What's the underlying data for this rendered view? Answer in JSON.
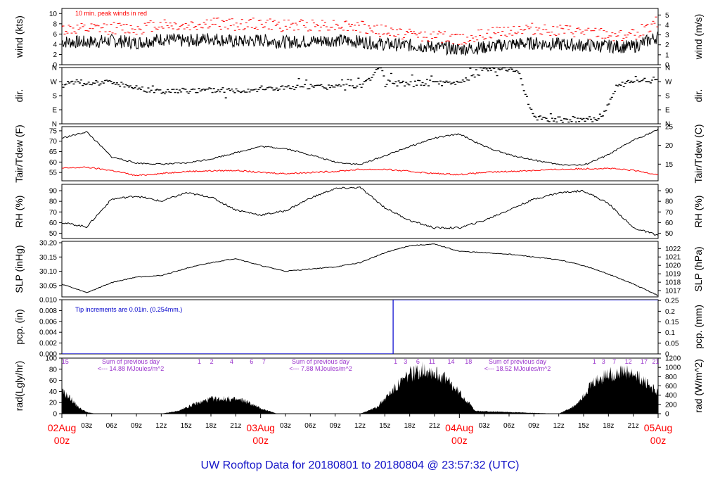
{
  "title": "UW Rooftop Data for 20180801  to  20180804 @ 23:57:32  (UTC)",
  "colors": {
    "black": "#000000",
    "red": "#ff0000",
    "blue": "#0000cc",
    "purple": "#9a33cc",
    "title_blue": "#1414c8"
  },
  "chart_data": [
    {
      "type": "line",
      "panel": "wind",
      "ylabel": "wind (kts)",
      "ylabel_right": "wind (m/s)",
      "ylim": [
        0,
        11
      ],
      "yticks": [
        0,
        2,
        4,
        6,
        8,
        10
      ],
      "right_ticks": [
        0,
        1,
        2,
        3,
        4,
        5
      ],
      "annotation": "10 min. peak winds in red",
      "series": [
        {
          "name": "wind speed",
          "color": "#000000",
          "x": [
            0,
            3,
            6,
            9,
            12,
            15,
            18,
            21,
            24,
            27,
            30,
            33,
            36,
            39,
            42,
            45,
            48,
            51,
            54,
            57,
            60,
            63,
            66,
            69,
            72
          ],
          "y": [
            4.5,
            4.4,
            4.7,
            4.3,
            5.0,
            4.6,
            5.2,
            4.5,
            4.8,
            4.4,
            4.6,
            4.8,
            4.5,
            4.0,
            3.8,
            3.5,
            3.0,
            3.4,
            4.0,
            4.2,
            4.0,
            3.8,
            3.6,
            3.5,
            5.5
          ]
        },
        {
          "name": "10 min. peak winds",
          "color": "#ff0000",
          "x": [
            0,
            3,
            6,
            9,
            12,
            15,
            18,
            21,
            24,
            27,
            30,
            33,
            36,
            39,
            42,
            45,
            48,
            51,
            54,
            57,
            60,
            63,
            66,
            69,
            72
          ],
          "y": [
            7.0,
            6.8,
            7.2,
            7.0,
            8.0,
            7.5,
            8.2,
            7.8,
            8.0,
            7.6,
            7.8,
            7.8,
            7.4,
            6.5,
            6.0,
            5.5,
            5.0,
            5.8,
            6.8,
            7.0,
            6.6,
            6.2,
            5.8,
            5.8,
            8.5
          ]
        }
      ]
    },
    {
      "type": "scatter",
      "panel": "dir",
      "ylabel": "dir.",
      "ylabel_right": "dir.",
      "ylim": [
        0,
        360
      ],
      "ytick_labels": [
        "N",
        "E",
        "S",
        "W",
        "N"
      ],
      "series": [
        {
          "name": "wind direction",
          "color": "#000000",
          "x": [
            0,
            3,
            6,
            9,
            12,
            15,
            18,
            21,
            24,
            27,
            30,
            33,
            36,
            38.5,
            39,
            41,
            43,
            45,
            47,
            49,
            51,
            53,
            55,
            57,
            59,
            61,
            63,
            65,
            67,
            69,
            72
          ],
          "y": [
            265,
            262,
            268,
            230,
            205,
            210,
            215,
            215,
            225,
            230,
            235,
            238,
            240,
            355,
            270,
            255,
            260,
            262,
            255,
            290,
            345,
            350,
            350,
            30,
            30,
            25,
            35,
            25,
            235,
            270,
            285
          ]
        }
      ]
    },
    {
      "type": "line",
      "panel": "temp",
      "ylabel": "Tair/Tdew (F)",
      "ylabel_right": "Tair/Tdew (C)",
      "ylim": [
        51,
        77
      ],
      "yticks": [
        55,
        60,
        65,
        70,
        75
      ],
      "right_ticks": [
        15,
        20,
        25
      ],
      "series": [
        {
          "name": "Tair",
          "color": "#000000",
          "x": [
            0,
            3,
            6,
            9,
            12,
            15,
            18,
            21,
            24,
            27,
            30,
            33,
            36,
            39,
            42,
            45,
            48,
            51,
            54,
            57,
            60,
            63,
            66,
            69,
            72
          ],
          "y": [
            71.5,
            74.5,
            62.5,
            59.5,
            59.0,
            59.5,
            61.5,
            64.5,
            67.5,
            66.5,
            63.5,
            60.0,
            58.8,
            63.0,
            67.5,
            71.5,
            73.5,
            67.5,
            63.5,
            61.0,
            58.8,
            58.5,
            63.5,
            70.5,
            75.5
          ]
        },
        {
          "name": "Tdew",
          "color": "#ff0000",
          "x": [
            0,
            3,
            6,
            9,
            12,
            15,
            18,
            21,
            24,
            27,
            30,
            33,
            36,
            39,
            42,
            45,
            48,
            51,
            54,
            57,
            60,
            63,
            66,
            69,
            72
          ],
          "y": [
            57.0,
            57.5,
            56.0,
            53.5,
            54.5,
            55.5,
            55.8,
            56.0,
            55.0,
            54.5,
            55.0,
            55.5,
            56.5,
            56.5,
            55.5,
            54.5,
            54.0,
            55.0,
            55.5,
            56.0,
            56.5,
            56.8,
            57.0,
            56.0,
            54.0
          ]
        }
      ]
    },
    {
      "type": "line",
      "panel": "rh",
      "ylabel": "RH (%)",
      "ylabel_right": "RH (%)",
      "ylim": [
        45,
        96
      ],
      "yticks": [
        50,
        60,
        70,
        80,
        90
      ],
      "series": [
        {
          "name": "RH",
          "color": "#000000",
          "x": [
            0,
            3,
            6,
            9,
            12,
            15,
            18,
            21,
            24,
            27,
            30,
            33,
            36,
            39,
            42,
            45,
            48,
            51,
            54,
            57,
            60,
            63,
            66,
            69,
            72
          ],
          "y": [
            60,
            56,
            82,
            85,
            80,
            88,
            84,
            72,
            67,
            71,
            83,
            92,
            93,
            74,
            62,
            55,
            55,
            62,
            72,
            82,
            88,
            90,
            78,
            55,
            48
          ]
        }
      ]
    },
    {
      "type": "line",
      "panel": "slp",
      "ylabel": "SLP (inHg)",
      "ylabel_right": "SLP (hPa)",
      "ylim": [
        30.01,
        30.205
      ],
      "yticks": [
        30.05,
        30.1,
        30.15,
        30.2
      ],
      "ytick_labels": [
        "30.05",
        "30.10",
        "30.15",
        "30.20"
      ],
      "right_ticks": [
        1017,
        1018,
        1019,
        1020,
        1021,
        1022
      ],
      "series": [
        {
          "name": "SLP",
          "color": "#000000",
          "x": [
            0,
            3,
            6,
            9,
            12,
            15,
            18,
            21,
            24,
            27,
            30,
            33,
            36,
            39,
            42,
            45,
            48,
            51,
            54,
            57,
            60,
            63,
            66,
            69,
            72
          ],
          "y": [
            30.055,
            30.025,
            30.06,
            30.08,
            30.085,
            30.11,
            30.13,
            30.145,
            30.12,
            30.1,
            30.108,
            30.115,
            30.13,
            30.165,
            30.19,
            30.195,
            30.17,
            30.165,
            30.16,
            30.15,
            30.14,
            30.12,
            30.09,
            30.055,
            30.015
          ]
        }
      ]
    },
    {
      "type": "line",
      "panel": "pcp",
      "ylabel": "pcp. (in)",
      "ylabel_right": "pcp. (mm)",
      "ylim": [
        0,
        0.01
      ],
      "yticks": [
        0,
        0.002,
        0.004,
        0.006,
        0.008,
        0.01
      ],
      "ytick_labels": [
        "0.000",
        "0.002",
        "0.004",
        "0.006",
        "0.008",
        "0.010"
      ],
      "right_ticks": [
        0,
        0.05,
        0.1,
        0.15,
        0.2,
        0.25
      ],
      "right_tick_labels": [
        "0",
        "0.05",
        "0.1",
        "0.15",
        "0.2",
        "0.25"
      ],
      "annotation": "Tip increments are 0.01in. (0.254mm.)",
      "series": [
        {
          "name": "precipitation",
          "color": "#0000cc",
          "x": [
            0,
            40.0,
            40.0,
            72
          ],
          "y": [
            0,
            0,
            0.01,
            0.01
          ]
        }
      ]
    },
    {
      "type": "area",
      "panel": "rad",
      "ylabel": "rad(Lgly/hr)",
      "ylabel_right": "rad (W/m^2)",
      "ylim": [
        0,
        100
      ],
      "yticks": [
        0,
        20,
        40,
        60,
        80,
        100
      ],
      "right_ticks": [
        0,
        200,
        400,
        600,
        800,
        1000,
        1200
      ],
      "series": [
        {
          "name": "solar radiation",
          "color": "#000000",
          "x": [
            0,
            1,
            2,
            3,
            4,
            12,
            14,
            16,
            18,
            20,
            22,
            24,
            26,
            36,
            38,
            40,
            42,
            44,
            46,
            48,
            50,
            60,
            62,
            64,
            66,
            68,
            70,
            72
          ],
          "y": [
            42,
            30,
            12,
            3,
            0,
            0,
            5,
            18,
            28,
            28,
            25,
            10,
            0,
            0,
            12,
            45,
            75,
            85,
            70,
            40,
            5,
            0,
            15,
            55,
            75,
            78,
            65,
            40
          ]
        }
      ],
      "annotations": [
        {
          "lines": [
            "Sum of previous day",
            "<--- 14.88 MJoules/m^2"
          ]
        },
        {
          "lines": [
            "Sum of previous day",
            "<--- 7.88 MJoules/m^2"
          ]
        },
        {
          "lines": [
            "Sum of previous day",
            "<--- 18.52 MJoules/m^2"
          ]
        }
      ],
      "markers": [
        {
          "label": "15",
          "x": 0.4
        },
        {
          "label": "1",
          "x": 16.6
        },
        {
          "label": "2",
          "x": 18.1
        },
        {
          "label": "4",
          "x": 20.5
        },
        {
          "label": "6",
          "x": 22.9
        },
        {
          "label": "7",
          "x": 24.4
        },
        {
          "label": "1",
          "x": 40.3
        },
        {
          "label": "3",
          "x": 41.5
        },
        {
          "label": "6",
          "x": 43.0
        },
        {
          "label": "11",
          "x": 44.7
        },
        {
          "label": "14",
          "x": 47.0
        },
        {
          "label": "18",
          "x": 49.1
        },
        {
          "label": "1",
          "x": 64.3
        },
        {
          "label": "3",
          "x": 65.4
        },
        {
          "label": "7",
          "x": 66.7
        },
        {
          "label": "12",
          "x": 68.4
        },
        {
          "label": "17",
          "x": 70.3
        },
        {
          "label": "21",
          "x": 71.7
        }
      ]
    }
  ],
  "x_axis": {
    "range_hours": [
      0,
      72
    ],
    "ticks": [
      {
        "h": 3,
        "label": "03z"
      },
      {
        "h": 6,
        "label": "06z"
      },
      {
        "h": 9,
        "label": "09z"
      },
      {
        "h": 12,
        "label": "12z"
      },
      {
        "h": 15,
        "label": "15z"
      },
      {
        "h": 18,
        "label": "18z"
      },
      {
        "h": 21,
        "label": "21z"
      },
      {
        "h": 27,
        "label": "03z"
      },
      {
        "h": 30,
        "label": "06z"
      },
      {
        "h": 33,
        "label": "09z"
      },
      {
        "h": 36,
        "label": "12z"
      },
      {
        "h": 39,
        "label": "15z"
      },
      {
        "h": 42,
        "label": "18z"
      },
      {
        "h": 45,
        "label": "21z"
      },
      {
        "h": 51,
        "label": "03z"
      },
      {
        "h": 54,
        "label": "06z"
      },
      {
        "h": 57,
        "label": "09z"
      },
      {
        "h": 60,
        "label": "12z"
      },
      {
        "h": 63,
        "label": "15z"
      },
      {
        "h": 66,
        "label": "18z"
      },
      {
        "h": 69,
        "label": "21z"
      }
    ],
    "day_labels": [
      {
        "h": 0,
        "date": "02Aug",
        "time": "00z"
      },
      {
        "h": 24,
        "date": "03Aug",
        "time": "00z"
      },
      {
        "h": 48,
        "date": "04Aug",
        "time": "00z"
      },
      {
        "h": 72,
        "date": "05Aug",
        "time": "00z"
      }
    ]
  }
}
